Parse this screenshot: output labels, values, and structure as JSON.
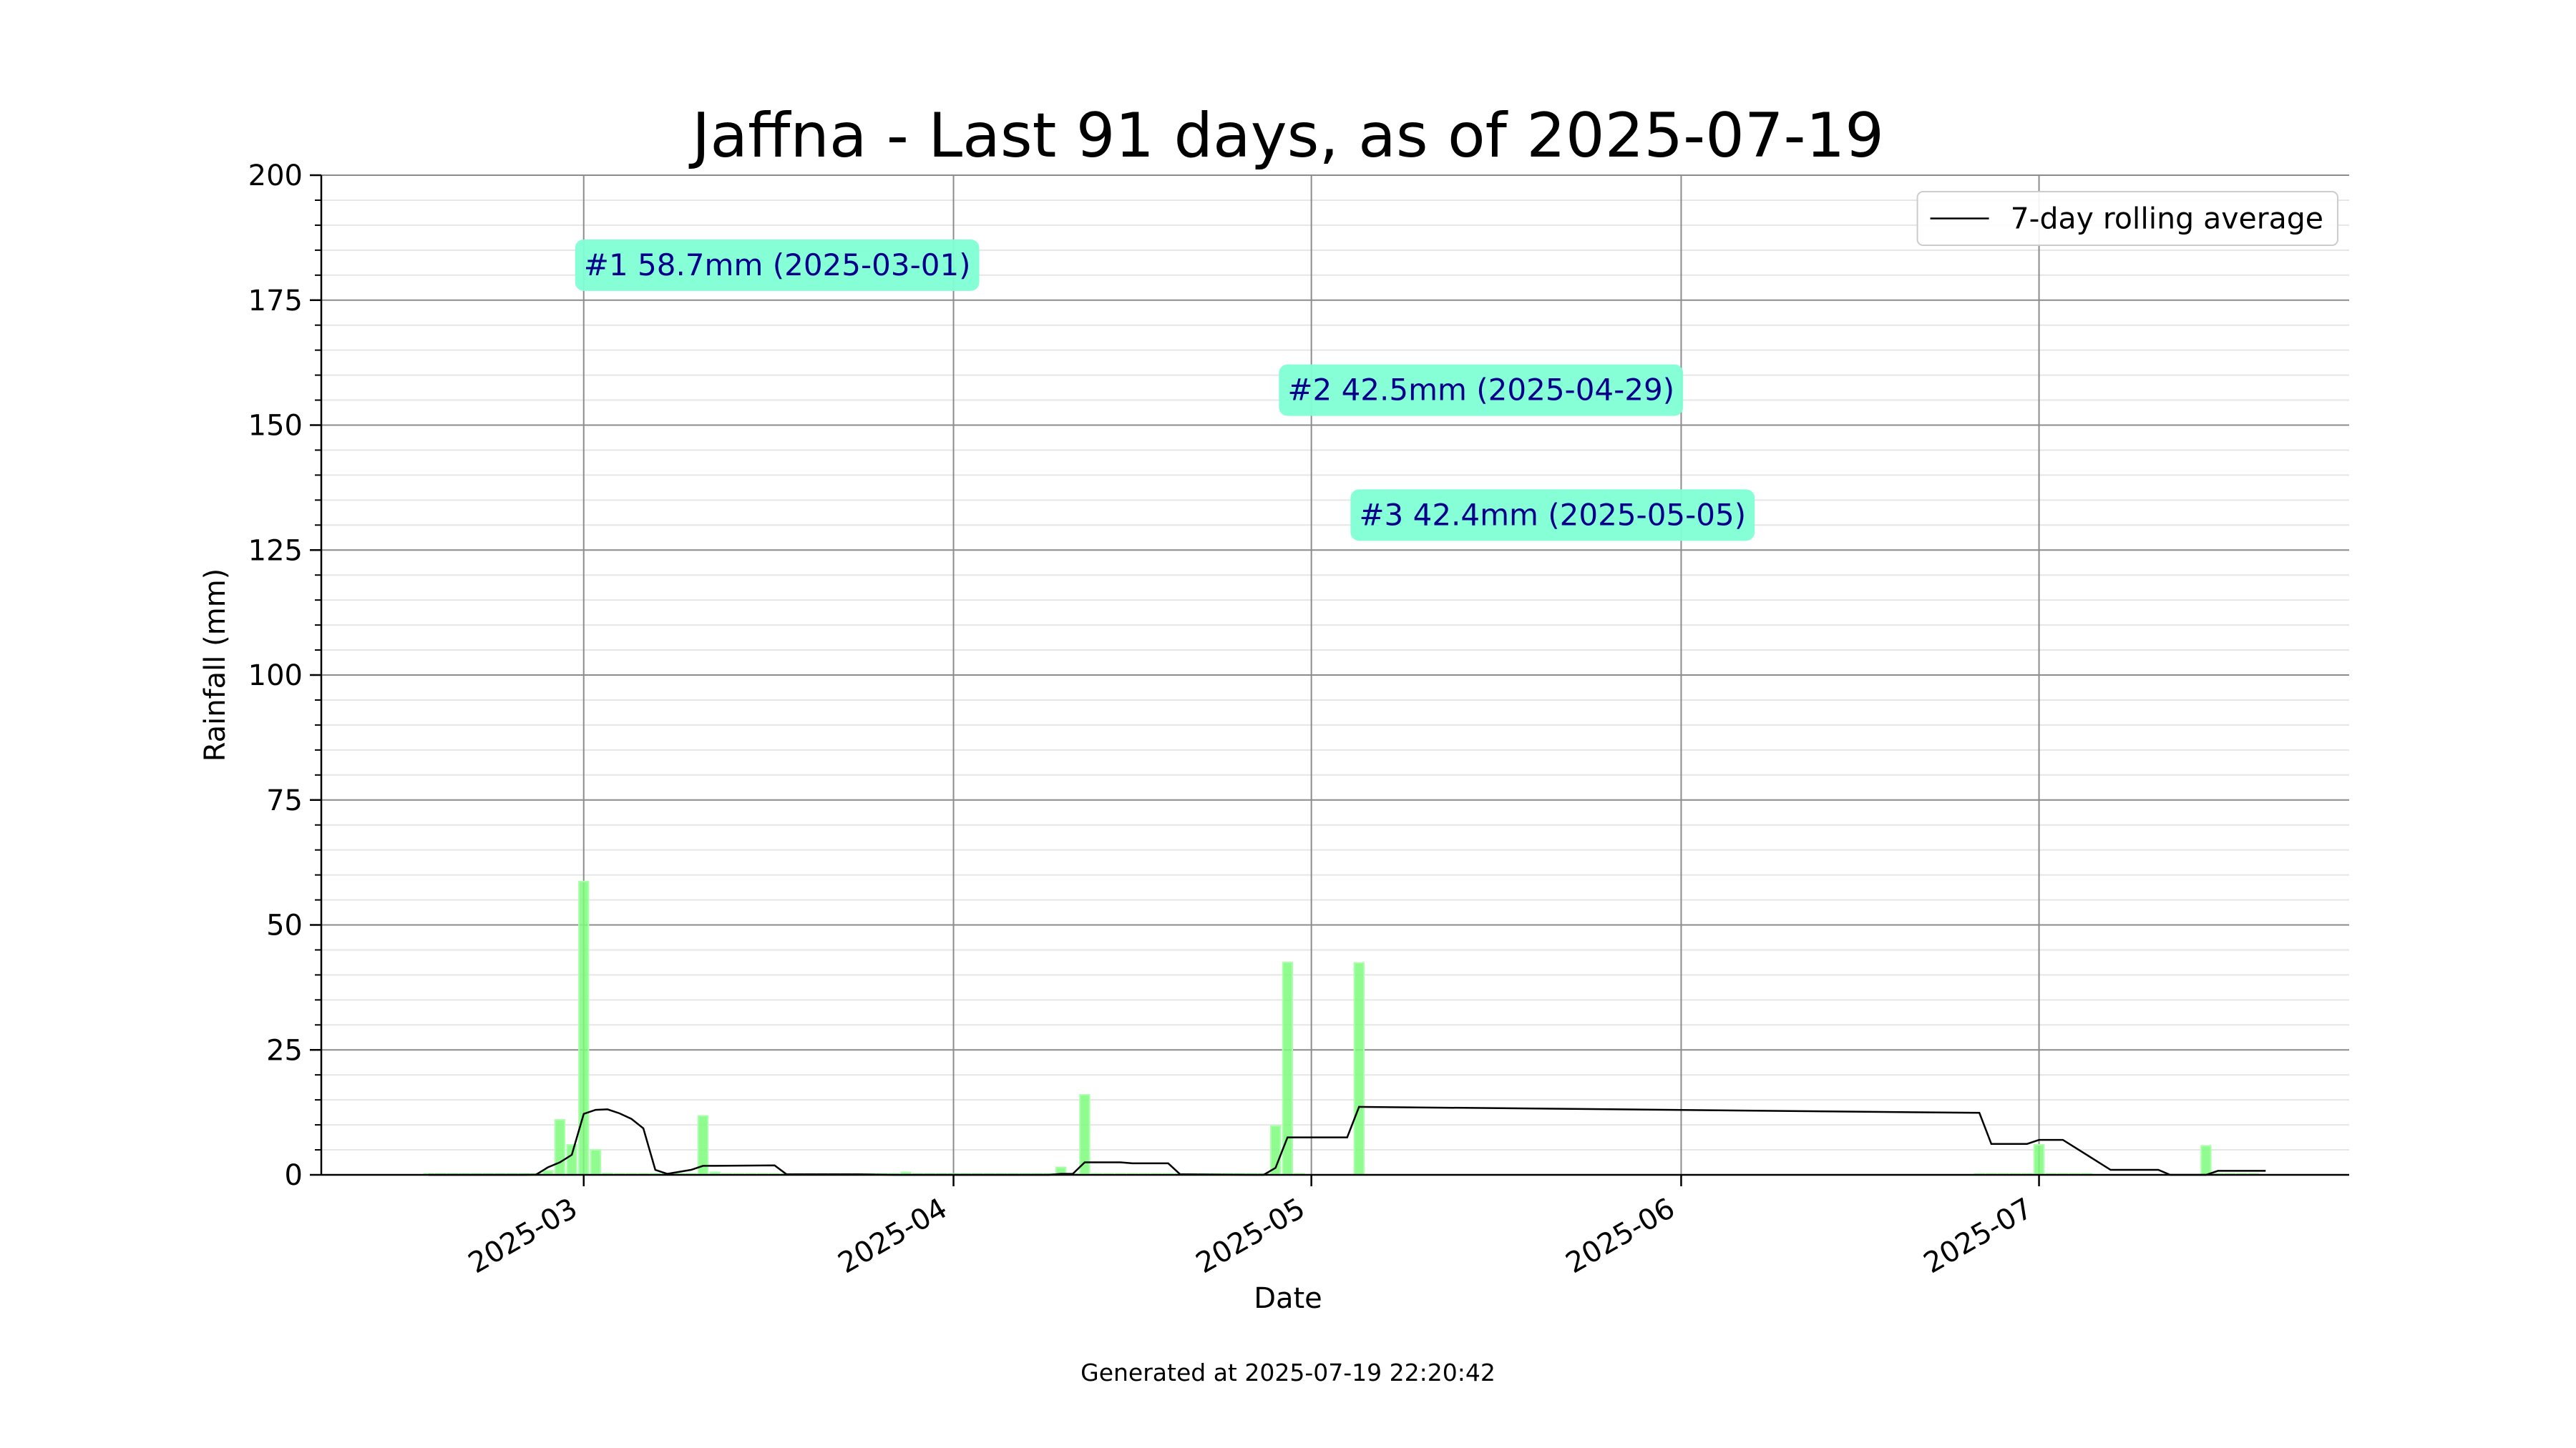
{
  "chart_data": {
    "type": "bar",
    "title": "Jaffna - Last 91 days, as of 2025-07-19",
    "xlabel": "Date",
    "ylabel": "Rainfall (mm)",
    "footer": "Generated at 2025-07-19 22:20:42",
    "ylim": [
      0,
      200
    ],
    "xlim": [
      "2025-02-07",
      "2025-07-27"
    ],
    "yticks": [
      0,
      25,
      50,
      75,
      100,
      125,
      150,
      175,
      200
    ],
    "xticks": [
      "2025-03-01",
      "2025-04-01",
      "2025-05-01",
      "2025-06-01",
      "2025-07-01"
    ],
    "xtick_labels": [
      "2025-03",
      "2025-04",
      "2025-05",
      "2025-06",
      "2025-07"
    ],
    "grid": true,
    "legend": {
      "position": "top-right",
      "entries": [
        "7-day rolling average"
      ]
    },
    "colors": {
      "bar": "#7cfc7c",
      "bar_top": "#aaffaa",
      "line": "#000000",
      "annotation_bg": "#7fffd4",
      "annotation_text": "#00008b"
    },
    "series": [
      {
        "values": [
          [
            "2025-02-16",
            0
          ],
          [
            "2025-02-17",
            0
          ],
          [
            "2025-02-18",
            0
          ],
          [
            "2025-02-19",
            0
          ],
          [
            "2025-02-20",
            0
          ],
          [
            "2025-02-21",
            0
          ],
          [
            "2025-02-22",
            0
          ],
          [
            "2025-02-23",
            0
          ],
          [
            "2025-02-24",
            0
          ],
          [
            "2025-02-25",
            0.2
          ],
          [
            "2025-02-26",
            0.8
          ],
          [
            "2025-02-27",
            11
          ],
          [
            "2025-02-28",
            6
          ],
          [
            "2025-03-01",
            58.7
          ],
          [
            "2025-03-02",
            5
          ],
          [
            "2025-03-03",
            0.3
          ],
          [
            "2025-03-04",
            0
          ],
          [
            "2025-03-05",
            0
          ],
          [
            "2025-03-06",
            0.2
          ],
          [
            "2025-03-07",
            0
          ],
          [
            "2025-03-08",
            0
          ],
          [
            "2025-03-09",
            0
          ],
          [
            "2025-03-10",
            0.2
          ],
          [
            "2025-03-11",
            11.8
          ],
          [
            "2025-03-12",
            0.5
          ],
          [
            "2025-03-13",
            0
          ],
          [
            "2025-03-14",
            0
          ],
          [
            "2025-03-15",
            0
          ],
          [
            "2025-03-16",
            0
          ],
          [
            "2025-03-17",
            0
          ],
          [
            "2025-03-18",
            0
          ],
          [
            "2025-03-19",
            0
          ],
          [
            "2025-03-20",
            0
          ],
          [
            "2025-03-21",
            0
          ],
          [
            "2025-03-22",
            0
          ],
          [
            "2025-03-23",
            0
          ],
          [
            "2025-03-24",
            0
          ],
          [
            "2025-03-25",
            0
          ],
          [
            "2025-03-26",
            0
          ],
          [
            "2025-03-27",
            0
          ],
          [
            "2025-03-28",
            0.5
          ],
          [
            "2025-03-29",
            0
          ],
          [
            "2025-03-30",
            0
          ],
          [
            "2025-03-31",
            0
          ],
          [
            "2025-04-01",
            0
          ],
          [
            "2025-04-02",
            0
          ],
          [
            "2025-04-03",
            0
          ],
          [
            "2025-04-04",
            0
          ],
          [
            "2025-04-05",
            0
          ],
          [
            "2025-04-06",
            0
          ],
          [
            "2025-04-07",
            0
          ],
          [
            "2025-04-08",
            0
          ],
          [
            "2025-04-09",
            0
          ],
          [
            "2025-04-10",
            1.5
          ],
          [
            "2025-04-11",
            0
          ],
          [
            "2025-04-12",
            16
          ],
          [
            "2025-04-13",
            0
          ],
          [
            "2025-04-14",
            0
          ],
          [
            "2025-04-15",
            0
          ],
          [
            "2025-04-16",
            0
          ],
          [
            "2025-04-17",
            0
          ],
          [
            "2025-04-18",
            0
          ],
          [
            "2025-04-19",
            0
          ],
          [
            "2025-04-20",
            0
          ],
          [
            "2025-04-21",
            0
          ],
          [
            "2025-04-22",
            0
          ],
          [
            "2025-04-23",
            0
          ],
          [
            "2025-04-24",
            0
          ],
          [
            "2025-04-25",
            0
          ],
          [
            "2025-04-26",
            0
          ],
          [
            "2025-04-27",
            0
          ],
          [
            "2025-04-28",
            9.8
          ],
          [
            "2025-04-29",
            42.5
          ],
          [
            "2025-04-30",
            0
          ],
          [
            "2025-05-05",
            42.4
          ],
          [
            "2025-06-26",
            0
          ],
          [
            "2025-06-27",
            0
          ],
          [
            "2025-06-28",
            0
          ],
          [
            "2025-06-29",
            0
          ],
          [
            "2025-06-30",
            0
          ],
          [
            "2025-07-01",
            6
          ],
          [
            "2025-07-02",
            0
          ],
          [
            "2025-07-03",
            0
          ],
          [
            "2025-07-04",
            0
          ],
          [
            "2025-07-05",
            0
          ],
          [
            "2025-07-15",
            5.8
          ],
          [
            "2025-07-16",
            0
          ],
          [
            "2025-07-17",
            0
          ],
          [
            "2025-07-18",
            0
          ],
          [
            "2025-07-19",
            0
          ]
        ]
      },
      {
        "name": "7-day rolling average",
        "type": "line",
        "values": [
          [
            "2025-02-16",
            0
          ],
          [
            "2025-02-24",
            0
          ],
          [
            "2025-02-25",
            0.05
          ],
          [
            "2025-02-26",
            1.5
          ],
          [
            "2025-02-27",
            2.5
          ],
          [
            "2025-02-28",
            4
          ],
          [
            "2025-03-01",
            12.2
          ],
          [
            "2025-03-02",
            13
          ],
          [
            "2025-03-03",
            13.1
          ],
          [
            "2025-03-04",
            12.3
          ],
          [
            "2025-03-05",
            11.2
          ],
          [
            "2025-03-06",
            9.3
          ],
          [
            "2025-03-07",
            1
          ],
          [
            "2025-03-08",
            0.2
          ],
          [
            "2025-03-10",
            1
          ],
          [
            "2025-03-11",
            1.8
          ],
          [
            "2025-03-12",
            1.8
          ],
          [
            "2025-03-17",
            1.9
          ],
          [
            "2025-03-18",
            0.1
          ],
          [
            "2025-03-24",
            0.1
          ],
          [
            "2025-03-27",
            0
          ],
          [
            "2025-04-09",
            0
          ],
          [
            "2025-04-10",
            0.2
          ],
          [
            "2025-04-11",
            0.2
          ],
          [
            "2025-04-12",
            2.5
          ],
          [
            "2025-04-15",
            2.5
          ],
          [
            "2025-04-16",
            2.3
          ],
          [
            "2025-04-19",
            2.3
          ],
          [
            "2025-04-20",
            0.1
          ],
          [
            "2025-04-26",
            0
          ],
          [
            "2025-04-27",
            0
          ],
          [
            "2025-04-28",
            1.4
          ],
          [
            "2025-04-29",
            7.5
          ],
          [
            "2025-05-04",
            7.5
          ],
          [
            "2025-05-05",
            13.6
          ],
          [
            "2025-06-26",
            12.4
          ],
          [
            "2025-06-27",
            6.2
          ],
          [
            "2025-06-30",
            6.2
          ],
          [
            "2025-07-01",
            7
          ],
          [
            "2025-07-03",
            7
          ],
          [
            "2025-07-07",
            1
          ],
          [
            "2025-07-08",
            1
          ],
          [
            "2025-07-11",
            1
          ],
          [
            "2025-07-12",
            0
          ],
          [
            "2025-07-15",
            0
          ],
          [
            "2025-07-16",
            0.8
          ],
          [
            "2025-07-19",
            0.8
          ],
          [
            "2025-07-20",
            0.8
          ]
        ]
      }
    ],
    "annotations": [
      {
        "text": "#1 58.7mm (2025-03-01)",
        "x": "2025-03-01",
        "y": 182
      },
      {
        "text": "#2 42.5mm (2025-04-29)",
        "x": "2025-04-29",
        "y": 157
      },
      {
        "text": "#3 42.4mm (2025-05-05)",
        "x": "2025-05-05",
        "y": 132
      }
    ]
  }
}
